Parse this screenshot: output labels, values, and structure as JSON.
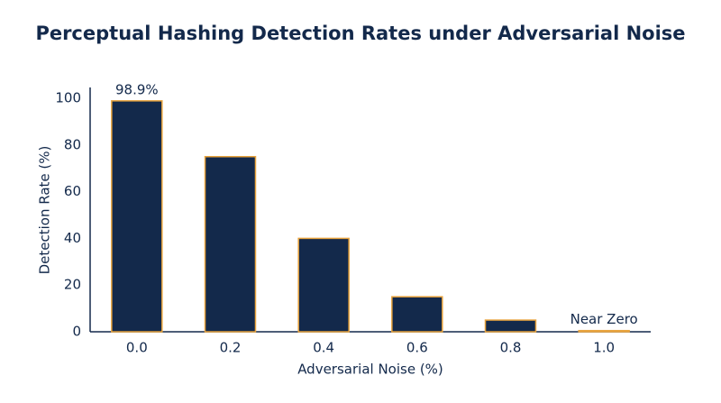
{
  "chart_data": {
    "type": "bar",
    "title": "Perceptual Hashing Detection Rates under Adversarial Noise",
    "x_label": "Adversarial Noise (%)",
    "y_label": "Detection Rate (%)",
    "categories": [
      "0.0",
      "0.2",
      "0.4",
      "0.6",
      "0.8",
      "1.0"
    ],
    "values": [
      98.9,
      75,
      40,
      15,
      5,
      0.5
    ],
    "value_labels": [
      "98.9%",
      null,
      null,
      null,
      null,
      "Near Zero"
    ],
    "color": "#13294b",
    "edge_color": "#e8a33d",
    "ylim": [
      0,
      100
    ],
    "yticks": [
      0,
      20,
      40,
      60,
      80,
      100
    ],
    "grid": false
  }
}
